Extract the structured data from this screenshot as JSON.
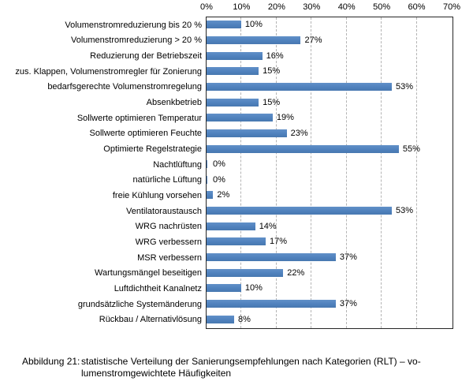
{
  "figure": {
    "caption": {
      "label": "Abbildung 21:",
      "lines": [
        "statistische Verteilung der Sanierungsempfehlungen nach Kategorien (RLT) – vo-",
        "lumenstromgewichtete Häufigkeiten"
      ]
    }
  },
  "chart_data": {
    "type": "bar",
    "orientation": "horizontal",
    "title": "",
    "xlabel": "",
    "ylabel": "",
    "xlim": [
      0,
      70
    ],
    "x_ticks": [
      "0%",
      "10%",
      "20%",
      "30%",
      "40%",
      "50%",
      "60%",
      "70%"
    ],
    "grid": "vertical dashed gridlines every 10%, tick axis on top",
    "legend": "none",
    "bar_color": "#4F81BD",
    "categories": [
      "Volumenstromreduzierung bis 20 %",
      "Volumenstromreduzierung > 20 %",
      "Reduzierung der Betriebszeit",
      "zus. Klappen, Volumenstromregler für Zonierung",
      "bedarfsgerechte Volumenstromregelung",
      "Absenkbetrieb",
      "Sollwerte optimieren Temperatur",
      "Sollwerte optimieren Feuchte",
      "Optimierte Regelstrategie",
      "Nachtlüftung",
      "natürliche Lüftung",
      "freie Kühlung vorsehen",
      "Ventilatoraustausch",
      "WRG nachrüsten",
      "WRG verbessern",
      "MSR verbessern",
      "Wartungsmängel beseitigen",
      "Luftdichtheit Kanalnetz",
      "grundsätzliche Systemänderung",
      "Rückbau / Alternativlösung"
    ],
    "values": [
      10,
      27,
      16,
      15,
      53,
      15,
      19,
      23,
      55,
      0,
      0,
      2,
      53,
      14,
      17,
      37,
      22,
      10,
      37,
      8
    ],
    "data_labels": [
      "10%",
      "27%",
      "16%",
      "15%",
      "53%",
      "15%",
      "19%",
      "23%",
      "55%",
      "0%",
      "0%",
      "2%",
      "53%",
      "14%",
      "17%",
      "37%",
      "22%",
      "10%",
      "37%",
      "8%"
    ]
  }
}
